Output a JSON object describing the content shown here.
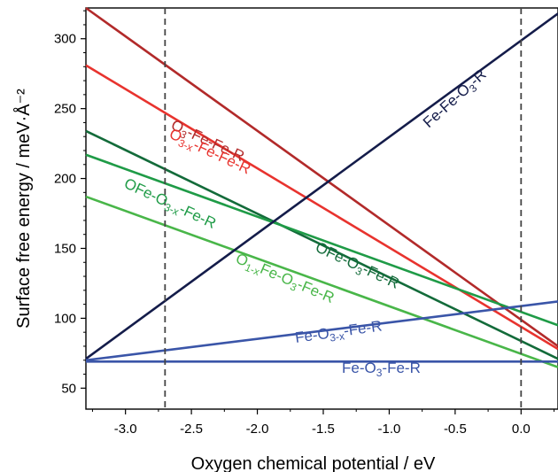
{
  "chart_data": {
    "type": "line",
    "title": "",
    "xlabel": "Oxygen chemical potential / eV",
    "ylabel": "Surface free energy / meV·Å⁻²",
    "xlim": [
      -3.3,
      0.28
    ],
    "ylim": [
      35,
      322
    ],
    "xticks": [
      -3.0,
      -2.5,
      -2.0,
      -1.5,
      -1.0,
      -0.5,
      0.0
    ],
    "xtick_labels": [
      "-3.0",
      "-2.5",
      "-2.0",
      "-1.5",
      "-1.0",
      "-0.5",
      "0.0"
    ],
    "yticks": [
      50,
      100,
      150,
      200,
      250,
      300
    ],
    "ytick_labels": [
      "50",
      "100",
      "150",
      "200",
      "250",
      "300"
    ],
    "grid": false,
    "legend": "none",
    "reference_lines": [
      -2.7,
      0.0
    ],
    "series": [
      {
        "name": "O3-Fe-Fe-R",
        "color": "#b22a2a",
        "x": [
          -3.3,
          0.28
        ],
        "y": [
          322,
          80
        ],
        "label_parts": [
          [
            "O",
            false
          ],
          [
            "3",
            true
          ],
          [
            "-Fe-Fe-R",
            false
          ]
        ]
      },
      {
        "name": "O3-x-Fe-Fe-R",
        "color": "#e8332e",
        "x": [
          -3.3,
          0.28
        ],
        "y": [
          281,
          78
        ],
        "label_parts": [
          [
            "O",
            false
          ],
          [
            "3-x",
            true
          ],
          [
            "-Fe-Fe-R",
            false
          ]
        ]
      },
      {
        "name": "OFe-O3-Fe-R",
        "color": "#136b3a",
        "x": [
          -3.3,
          0.28
        ],
        "y": [
          234,
          71
        ],
        "label_parts": [
          [
            "OFe-O",
            false
          ],
          [
            "3",
            true
          ],
          [
            "-Fe-R",
            false
          ]
        ]
      },
      {
        "name": "OFe-O3-x-Fe-R",
        "color": "#1f9b47",
        "x": [
          -3.3,
          0.28
        ],
        "y": [
          217,
          95
        ],
        "label_parts": [
          [
            "OFe-O",
            false
          ],
          [
            "3-x",
            true
          ],
          [
            "-Fe-R",
            false
          ]
        ]
      },
      {
        "name": "O1-xFe-O3-Fe-R",
        "color": "#49b649",
        "x": [
          -3.3,
          0.28
        ],
        "y": [
          187,
          65
        ],
        "label_parts": [
          [
            "O",
            false
          ],
          [
            "1-x",
            true
          ],
          [
            "Fe-O",
            false
          ],
          [
            "3",
            true
          ],
          [
            "-Fe-R",
            false
          ]
        ]
      },
      {
        "name": "Fe-Fe-O3-R",
        "color": "#141c4a",
        "x": [
          -3.3,
          0.28
        ],
        "y": [
          71,
          318
        ],
        "label_parts": [
          [
            "Fe-Fe-O",
            false
          ],
          [
            "3",
            true
          ],
          [
            "-R",
            false
          ]
        ]
      },
      {
        "name": "Fe-O3-x-Fe-R",
        "color": "#3a55a8",
        "x": [
          -3.3,
          0.28
        ],
        "y": [
          70,
          112
        ],
        "label_parts": [
          [
            "Fe-O",
            false
          ],
          [
            "3-x",
            true
          ],
          [
            "-Fe-R",
            false
          ]
        ]
      },
      {
        "name": "Fe-O3-Fe-R",
        "color": "#3a55a8",
        "x": [
          -3.3,
          0.28
        ],
        "y": [
          69,
          69
        ],
        "label_parts": [
          [
            "Fe-O",
            false
          ],
          [
            "3",
            true
          ],
          [
            "-Fe-R",
            false
          ]
        ]
      }
    ]
  }
}
